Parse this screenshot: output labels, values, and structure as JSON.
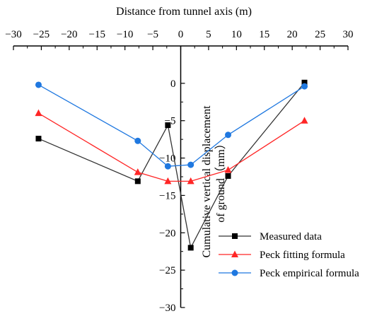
{
  "chart_data": {
    "type": "line",
    "title": "",
    "xlabel": "Distance from tunnel axis (m)",
    "ylabel_lines": [
      "Cumulative vertical displacement",
      "of ground（mm）"
    ],
    "xlim": [
      -30,
      30
    ],
    "ylim": [
      -30,
      5
    ],
    "x_ticks": [
      -30,
      -25,
      -20,
      -15,
      -10,
      -5,
      0,
      5,
      10,
      15,
      20,
      25,
      30
    ],
    "y_ticks": [
      0,
      -5,
      -10,
      -15,
      -20,
      -25,
      -30
    ],
    "x_tick_labels": [
      "−30",
      "−25",
      "−20",
      "−15",
      "−10",
      "−5",
      "0",
      "5",
      "10",
      "15",
      "20",
      "25",
      "30"
    ],
    "y_tick_labels": [
      "0",
      "−5",
      "−10",
      "−15",
      "−20",
      "−25",
      "−30"
    ],
    "x_axis_position": "top",
    "y_axis_position": "x=0",
    "grid": false,
    "legend_position": "bottom-right",
    "series": [
      {
        "name": "Measured data",
        "color": "#000000",
        "line_color": "#333333",
        "marker": "square",
        "points": [
          [
            -25.5,
            -7.4
          ],
          [
            -7.7,
            -13.1
          ],
          [
            -2.3,
            -5.6
          ],
          [
            1.8,
            -22.0
          ],
          [
            8.5,
            -12.4
          ],
          [
            22.2,
            0.1
          ]
        ]
      },
      {
        "name": "Peck fitting formula",
        "color": "#ff2626",
        "line_color": "#ff2626",
        "marker": "triangle",
        "points": [
          [
            -25.5,
            -4.0
          ],
          [
            -7.7,
            -11.9
          ],
          [
            -2.3,
            -13.1
          ],
          [
            1.8,
            -13.1
          ],
          [
            8.5,
            -11.6
          ],
          [
            22.2,
            -5.0
          ]
        ]
      },
      {
        "name": "Peck empirical formula",
        "color": "#1f78e0",
        "line_color": "#1f78e0",
        "marker": "circle",
        "points": [
          [
            -25.5,
            -0.2
          ],
          [
            -7.7,
            -7.7
          ],
          [
            -2.3,
            -11.1
          ],
          [
            1.8,
            -10.9
          ],
          [
            8.5,
            -6.9
          ],
          [
            22.2,
            -0.4
          ]
        ]
      }
    ]
  }
}
